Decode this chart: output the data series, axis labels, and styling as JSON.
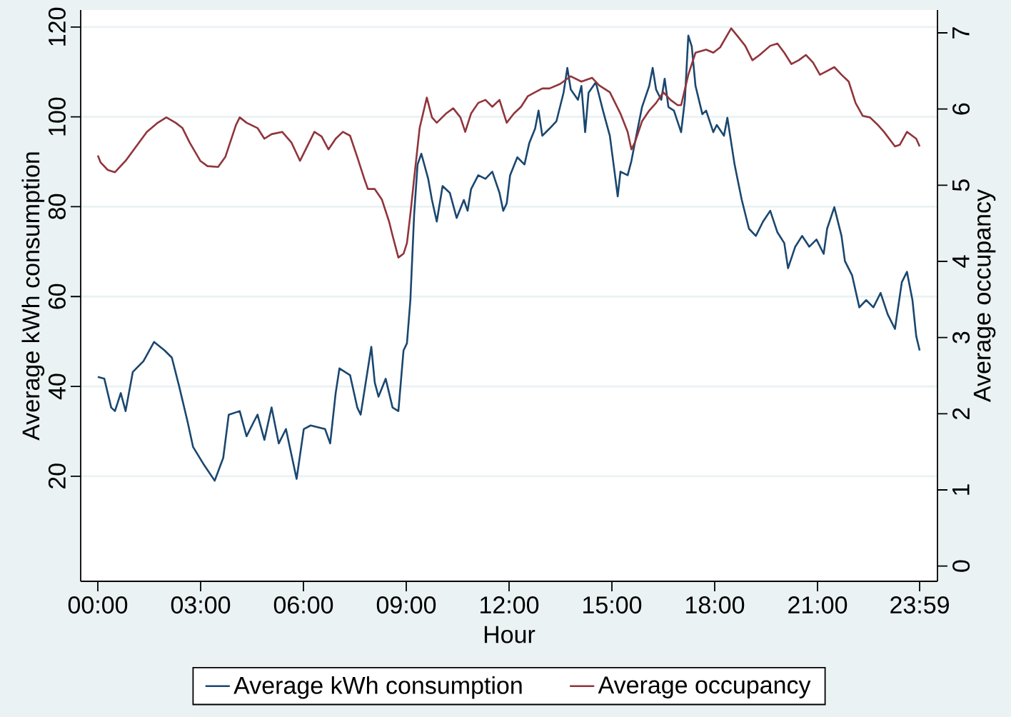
{
  "chart_data": {
    "type": "line",
    "xlabel": "Hour",
    "ylabel": "Average kWh consumption",
    "y2label": "Average occupancy",
    "xlim": [
      -0.5,
      24.5
    ],
    "xticks": [
      {
        "value": 0,
        "label": "00:00"
      },
      {
        "value": 3,
        "label": "03:00"
      },
      {
        "value": 6,
        "label": "06:00"
      },
      {
        "value": 9,
        "label": "09:00"
      },
      {
        "value": 12,
        "label": "12:00"
      },
      {
        "value": 15,
        "label": "15:00"
      },
      {
        "value": 18,
        "label": "18:00"
      },
      {
        "value": 21,
        "label": "21:00"
      },
      {
        "value": 23.98,
        "label": "23:59"
      }
    ],
    "ylim": [
      -3.4,
      123.8
    ],
    "yticks": [
      20,
      40,
      60,
      80,
      100,
      120
    ],
    "y2lim": [
      -0.2,
      7.3
    ],
    "y2ticks": [
      0,
      1,
      2,
      3,
      4,
      5,
      6,
      7
    ],
    "grid": "y",
    "legend": "bottom",
    "marker": "none",
    "line_style": "solid",
    "series": [
      {
        "name": "Average kWh consumption",
        "color": "#1a476f",
        "x": [
          0.0,
          0.19,
          0.39,
          0.5,
          0.67,
          0.81,
          1.02,
          1.33,
          1.64,
          1.95,
          2.16,
          2.37,
          2.62,
          2.78,
          3.1,
          3.41,
          3.66,
          3.82,
          4.14,
          4.34,
          4.55,
          4.66,
          4.86,
          5.07,
          5.28,
          5.49,
          5.8,
          6.01,
          6.21,
          6.63,
          6.78,
          6.94,
          7.05,
          7.36,
          7.57,
          7.67,
          7.98,
          8.08,
          8.19,
          8.4,
          8.6,
          8.77,
          8.92,
          9.02,
          9.12,
          9.23,
          9.33,
          9.44,
          9.64,
          9.75,
          9.89,
          10.06,
          10.27,
          10.47,
          10.68,
          10.79,
          10.89,
          11.1,
          11.31,
          11.51,
          11.72,
          11.83,
          11.93,
          12.03,
          12.24,
          12.45,
          12.59,
          12.76,
          12.86,
          12.97,
          13.18,
          13.38,
          13.59,
          13.7,
          13.8,
          14.01,
          14.11,
          14.22,
          14.32,
          14.53,
          14.74,
          14.94,
          15.05,
          15.17,
          15.25,
          15.46,
          15.57,
          15.67,
          15.88,
          16.09,
          16.19,
          16.29,
          16.44,
          16.54,
          16.65,
          16.81,
          17.02,
          17.13,
          17.23,
          17.33,
          17.44,
          17.64,
          17.75,
          17.96,
          18.06,
          18.27,
          18.37,
          18.58,
          18.79,
          19.0,
          19.2,
          19.41,
          19.62,
          19.83,
          20.03,
          20.14,
          20.35,
          20.55,
          20.76,
          20.97,
          21.18,
          21.28,
          21.49,
          21.7,
          21.8,
          22.01,
          22.22,
          22.42,
          22.63,
          22.84,
          23.05,
          23.26,
          23.46,
          23.61,
          23.77,
          23.88,
          23.98
        ],
        "values": [
          42.1,
          41.7,
          35.3,
          34.5,
          38.5,
          34.5,
          43.2,
          45.6,
          49.9,
          48.0,
          46.4,
          40.1,
          32.1,
          26.5,
          22.5,
          19.0,
          24.1,
          33.7,
          34.5,
          28.9,
          32.1,
          33.7,
          28.1,
          35.3,
          27.3,
          30.5,
          19.4,
          30.5,
          31.3,
          30.5,
          27.3,
          38.5,
          44.0,
          42.5,
          35.3,
          33.7,
          48.8,
          40.9,
          37.7,
          41.7,
          35.3,
          34.5,
          48.0,
          49.6,
          59.2,
          78.3,
          89.4,
          91.8,
          86.2,
          81.5,
          76.7,
          84.6,
          83.1,
          77.5,
          81.5,
          79.1,
          83.9,
          87.0,
          86.2,
          87.8,
          83.1,
          79.1,
          80.7,
          87.0,
          91.0,
          89.4,
          94.2,
          97.4,
          101.4,
          95.8,
          97.4,
          99.0,
          105.4,
          110.9,
          106.1,
          103.8,
          106.9,
          96.6,
          105.4,
          107.7,
          101.4,
          95.8,
          89.4,
          82.3,
          87.8,
          87.0,
          90.2,
          94.2,
          102.2,
          106.9,
          110.9,
          106.1,
          103.8,
          108.5,
          102.2,
          101.4,
          96.6,
          103.8,
          118.1,
          115.7,
          106.9,
          100.6,
          101.4,
          96.6,
          98.2,
          95.8,
          99.8,
          89.4,
          81.5,
          75.1,
          73.5,
          76.7,
          79.1,
          74.3,
          71.9,
          66.3,
          71.1,
          73.5,
          71.1,
          72.7,
          69.5,
          75.1,
          79.9,
          73.5,
          67.9,
          64.7,
          57.6,
          59.2,
          57.6,
          60.8,
          56.0,
          52.8,
          63.2,
          65.5,
          59.2,
          51.2,
          48.0
        ]
      },
      {
        "name": "Average occupancy",
        "color": "#90353b",
        "axis": "y2",
        "x": [
          0.0,
          0.08,
          0.29,
          0.5,
          0.81,
          1.12,
          1.43,
          1.75,
          2.0,
          2.27,
          2.47,
          2.68,
          2.99,
          3.2,
          3.51,
          3.72,
          4.03,
          4.14,
          4.34,
          4.66,
          4.86,
          5.07,
          5.38,
          5.65,
          5.9,
          6.11,
          6.32,
          6.53,
          6.73,
          6.94,
          7.15,
          7.36,
          7.57,
          7.77,
          7.88,
          8.08,
          8.29,
          8.5,
          8.6,
          8.77,
          8.92,
          9.02,
          9.12,
          9.23,
          9.39,
          9.6,
          9.75,
          9.89,
          10.16,
          10.37,
          10.58,
          10.72,
          10.89,
          11.1,
          11.31,
          11.51,
          11.72,
          11.93,
          12.14,
          12.35,
          12.55,
          12.76,
          12.97,
          13.18,
          13.49,
          13.8,
          14.11,
          14.42,
          14.63,
          14.94,
          15.25,
          15.46,
          15.57,
          15.67,
          15.88,
          16.09,
          16.29,
          16.5,
          16.71,
          16.92,
          17.02,
          17.23,
          17.44,
          17.75,
          17.96,
          18.16,
          18.48,
          18.68,
          18.89,
          19.1,
          19.31,
          19.62,
          19.83,
          20.03,
          20.24,
          20.45,
          20.66,
          20.87,
          21.07,
          21.28,
          21.49,
          21.7,
          21.91,
          22.11,
          22.32,
          22.53,
          22.74,
          22.94,
          23.26,
          23.4,
          23.61,
          23.88,
          23.98
        ],
        "values": [
          5.39,
          5.3,
          5.2,
          5.17,
          5.32,
          5.51,
          5.7,
          5.82,
          5.89,
          5.82,
          5.75,
          5.56,
          5.32,
          5.25,
          5.24,
          5.37,
          5.79,
          5.89,
          5.82,
          5.75,
          5.61,
          5.67,
          5.7,
          5.56,
          5.32,
          5.51,
          5.7,
          5.64,
          5.47,
          5.61,
          5.7,
          5.65,
          5.37,
          5.09,
          4.95,
          4.95,
          4.81,
          4.52,
          4.34,
          4.05,
          4.1,
          4.24,
          4.62,
          5.09,
          5.75,
          6.15,
          5.89,
          5.82,
          5.94,
          6.01,
          5.89,
          5.7,
          5.94,
          6.08,
          6.12,
          6.03,
          6.12,
          5.82,
          5.94,
          6.03,
          6.17,
          6.22,
          6.27,
          6.27,
          6.33,
          6.43,
          6.36,
          6.41,
          6.31,
          6.22,
          5.94,
          5.7,
          5.47,
          5.56,
          5.84,
          5.98,
          6.08,
          6.22,
          6.12,
          6.05,
          6.05,
          6.45,
          6.74,
          6.78,
          6.74,
          6.81,
          7.06,
          6.95,
          6.83,
          6.64,
          6.71,
          6.83,
          6.86,
          6.74,
          6.59,
          6.64,
          6.71,
          6.61,
          6.45,
          6.5,
          6.55,
          6.45,
          6.36,
          6.08,
          5.91,
          5.89,
          5.8,
          5.7,
          5.51,
          5.53,
          5.7,
          5.61,
          5.51
        ]
      }
    ]
  }
}
